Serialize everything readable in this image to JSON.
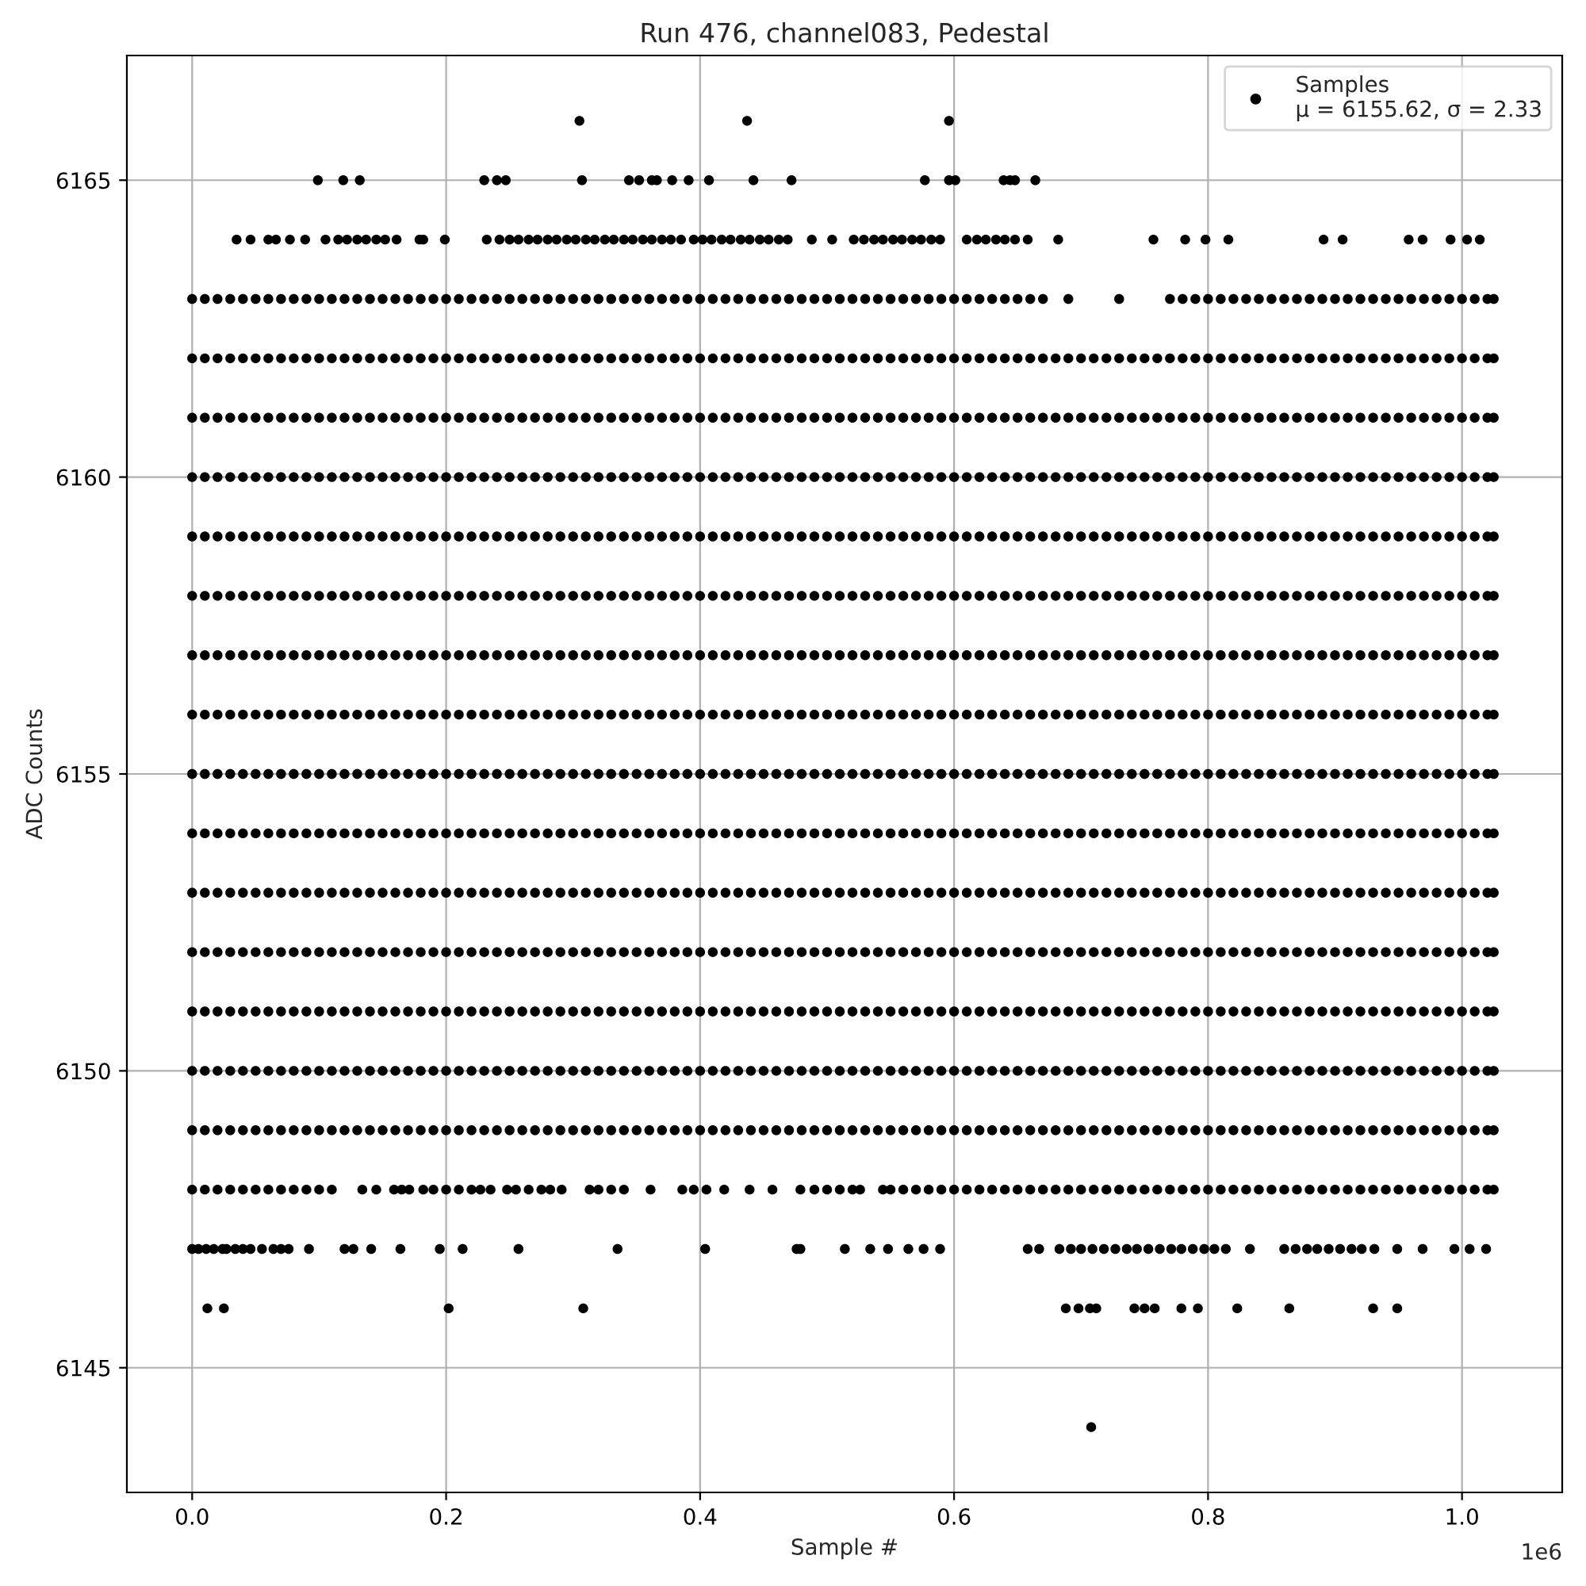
{
  "chart_data": {
    "type": "scatter",
    "title": "Run 476, channel083, Pedestal",
    "xlabel": "Sample #",
    "ylabel": "ADC Counts",
    "annotations": [
      "1e6"
    ],
    "xlim": [
      -0.0514,
      1.0789
    ],
    "ylim": [
      6142.9,
      6167.1
    ],
    "xticks": [
      {
        "value": 0,
        "label": "0.0"
      },
      0.2,
      0.4,
      0.6,
      0.8,
      {
        "value": 1,
        "label": "1.0"
      }
    ],
    "yticks": [
      6145,
      6150,
      6155,
      6160,
      6165
    ],
    "grid": true,
    "legend": "top right",
    "marker": "circle",
    "x": [
      0,
      0.01,
      0.02,
      0.03,
      0.04,
      0.05,
      0.06,
      0.07,
      0.08,
      0.09,
      0.1,
      0.11,
      0.12,
      0.13,
      0.14,
      0.15,
      0.16,
      0.17,
      0.18,
      0.19,
      0.2,
      0.21,
      0.22,
      0.23,
      0.24,
      0.25,
      0.26,
      0.27,
      0.28,
      0.29,
      0.3,
      0.31,
      0.32,
      0.33,
      0.34,
      0.35,
      0.36,
      0.37,
      0.38,
      0.39,
      0.4,
      0.41,
      0.42,
      0.43,
      0.44,
      0.45,
      0.46,
      0.47,
      0.48,
      0.49,
      0.5,
      0.51,
      0.52,
      0.53,
      0.54,
      0.55,
      0.56,
      0.57,
      0.58,
      0.59,
      0.6,
      0.61,
      0.62,
      0.63,
      0.64,
      0.65,
      0.66,
      0.67,
      0.68,
      0.69,
      0.7,
      0.71,
      0.72,
      0.73,
      0.74,
      0.75,
      0.76,
      0.77,
      0.78,
      0.79,
      0.8,
      0.81,
      0.82,
      0.83,
      0.84,
      0.85,
      0.86,
      0.87,
      0.88,
      0.89,
      0.9,
      0.91,
      0.92,
      0.93,
      0.94,
      0.95,
      0.96,
      0.97,
      0.98,
      0.99,
      1,
      1.01,
      1.02,
      1.025
    ],
    "series": [
      {
        "name": "Samples\nμ = 6155.62, σ = 2.33",
        "color": "#000000",
        "values": [
          6160,
          6160,
          6160,
          6160,
          6160,
          6160,
          6160,
          6160,
          6160,
          6160,
          6160,
          6160,
          6160,
          6160,
          6160,
          6160,
          6160,
          6160,
          6160,
          6160,
          6160,
          6160,
          6160,
          6160,
          6160,
          6160,
          6160,
          6160,
          6160,
          6160,
          6160,
          6160,
          6160,
          6160,
          6160,
          6160,
          6160,
          6160,
          6160,
          6160,
          6160,
          6160,
          6160,
          6160,
          6160,
          6160,
          6160,
          6160,
          6160,
          6160,
          6160,
          6160,
          6160,
          6160,
          6160,
          6160,
          6160,
          6160,
          6160,
          6160,
          6160,
          6160,
          6160,
          6160,
          6160,
          6160,
          6160,
          6160,
          6160,
          6160,
          6160,
          6160,
          6160,
          6160,
          6160,
          6160,
          6160,
          6160,
          6160,
          6160,
          6160,
          6160,
          6160,
          6160,
          6160,
          6160,
          6160,
          6160,
          6160,
          6160,
          6160,
          6160,
          6160,
          6160,
          6160,
          6160,
          6160,
          6160,
          6160,
          6160,
          6160,
          6160,
          6160,
          6160
        ]
      },
      {
        "color": "#000000",
        "values": [
          6163,
          6163,
          6163,
          6163,
          6163,
          6163,
          6163,
          6163,
          6163,
          6163,
          6163,
          6163,
          6163,
          6163,
          6163,
          6163,
          6163,
          6163,
          6163,
          6163,
          6163,
          6163,
          6163,
          6163,
          6163,
          6163,
          6163,
          6163,
          6163,
          6163,
          6163,
          6163,
          6163,
          6163,
          6163,
          6163,
          6163,
          6163,
          6163,
          6163,
          6163,
          6163,
          6163,
          6163,
          6163,
          6163,
          6163,
          6163,
          6163,
          6163,
          6163,
          6163,
          6163,
          6163,
          6163,
          6163,
          6163,
          6163,
          6163,
          6163,
          6163,
          6163,
          6163,
          6163,
          6163,
          6163,
          6163,
          6163,
          null,
          6163,
          null,
          null,
          null,
          6163,
          null,
          null,
          null,
          6163,
          6163,
          6163,
          6163,
          6163,
          6163,
          6163,
          6163,
          6163,
          6163,
          6163,
          6163,
          6163,
          6163,
          6163,
          6163,
          6163,
          6163,
          6163,
          6163,
          6163,
          6163,
          6163,
          6163,
          6163,
          6163,
          6163
        ]
      },
      {
        "color": "#000000",
        "values": [
          6162,
          6162,
          6162,
          6162,
          6162,
          6162,
          6162,
          6162,
          6162,
          6162,
          6162,
          6162,
          6162,
          6162,
          6162,
          6162,
          6162,
          6162,
          6162,
          6162,
          6162,
          6162,
          6162,
          6162,
          6162,
          6162,
          6162,
          6162,
          6162,
          6162,
          6162,
          6162,
          6162,
          6162,
          6162,
          6162,
          6162,
          6162,
          6162,
          6162,
          6162,
          6162,
          6162,
          6162,
          6162,
          6162,
          6162,
          6162,
          6162,
          6162,
          6162,
          6162,
          6162,
          6162,
          6162,
          6162,
          6162,
          6162,
          6162,
          6162,
          6162,
          6162,
          6162,
          6162,
          6162,
          6162,
          6162,
          6162,
          6162,
          6162,
          6162,
          6162,
          6162,
          6162,
          6162,
          6162,
          6162,
          6162,
          6162,
          6162,
          6162,
          6162,
          6162,
          6162,
          6162,
          6162,
          6162,
          6162,
          6162,
          6162,
          6162,
          6162,
          6162,
          6162,
          6162,
          6162,
          6162,
          6162,
          6162,
          6162,
          6162,
          6162,
          6162,
          6162
        ]
      },
      {
        "color": "#000000",
        "values": [
          6161,
          6161,
          6161,
          6161,
          6161,
          6161,
          6161,
          6161,
          6161,
          6161,
          6161,
          6161,
          6161,
          6161,
          6161,
          6161,
          6161,
          6161,
          6161,
          6161,
          6161,
          6161,
          6161,
          6161,
          6161,
          6161,
          6161,
          6161,
          6161,
          6161,
          6161,
          6161,
          6161,
          6161,
          6161,
          6161,
          6161,
          6161,
          6161,
          6161,
          6161,
          6161,
          6161,
          6161,
          6161,
          6161,
          6161,
          6161,
          6161,
          6161,
          6161,
          6161,
          6161,
          6161,
          6161,
          6161,
          6161,
          6161,
          6161,
          6161,
          6161,
          6161,
          6161,
          6161,
          6161,
          6161,
          6161,
          6161,
          6161,
          6161,
          6161,
          6161,
          6161,
          6161,
          6161,
          6161,
          6161,
          6161,
          6161,
          6161,
          6161,
          6161,
          6161,
          6161,
          6161,
          6161,
          6161,
          6161,
          6161,
          6161,
          6161,
          6161,
          6161,
          6161,
          6161,
          6161,
          6161,
          6161,
          6161,
          6161,
          6161,
          6161,
          6161,
          6161
        ]
      },
      {
        "color": "#000000",
        "values": [
          6159,
          6159,
          6159,
          6159,
          6159,
          6159,
          6159,
          6159,
          6159,
          6159,
          6159,
          6159,
          6159,
          6159,
          6159,
          6159,
          6159,
          6159,
          6159,
          6159,
          6159,
          6159,
          6159,
          6159,
          6159,
          6159,
          6159,
          6159,
          6159,
          6159,
          6159,
          6159,
          6159,
          6159,
          6159,
          6159,
          6159,
          6159,
          6159,
          6159,
          6159,
          6159,
          6159,
          6159,
          6159,
          6159,
          6159,
          6159,
          6159,
          6159,
          6159,
          6159,
          6159,
          6159,
          6159,
          6159,
          6159,
          6159,
          6159,
          6159,
          6159,
          6159,
          6159,
          6159,
          6159,
          6159,
          6159,
          6159,
          6159,
          6159,
          6159,
          6159,
          6159,
          6159,
          6159,
          6159,
          6159,
          6159,
          6159,
          6159,
          6159,
          6159,
          6159,
          6159,
          6159,
          6159,
          6159,
          6159,
          6159,
          6159,
          6159,
          6159,
          6159,
          6159,
          6159,
          6159,
          6159,
          6159,
          6159,
          6159,
          6159,
          6159,
          6159,
          6159
        ]
      },
      {
        "color": "#000000",
        "values": [
          6158,
          6158,
          6158,
          6158,
          6158,
          6158,
          6158,
          6158,
          6158,
          6158,
          6158,
          6158,
          6158,
          6158,
          6158,
          6158,
          6158,
          6158,
          6158,
          6158,
          6158,
          6158,
          6158,
          6158,
          6158,
          6158,
          6158,
          6158,
          6158,
          6158,
          6158,
          6158,
          6158,
          6158,
          6158,
          6158,
          6158,
          6158,
          6158,
          6158,
          6158,
          6158,
          6158,
          6158,
          6158,
          6158,
          6158,
          6158,
          6158,
          6158,
          6158,
          6158,
          6158,
          6158,
          6158,
          6158,
          6158,
          6158,
          6158,
          6158,
          6158,
          6158,
          6158,
          6158,
          6158,
          6158,
          6158,
          6158,
          6158,
          6158,
          6158,
          6158,
          6158,
          6158,
          6158,
          6158,
          6158,
          6158,
          6158,
          6158,
          6158,
          6158,
          6158,
          6158,
          6158,
          6158,
          6158,
          6158,
          6158,
          6158,
          6158,
          6158,
          6158,
          6158,
          6158,
          6158,
          6158,
          6158,
          6158,
          6158,
          6158,
          6158,
          6158,
          6158
        ]
      },
      {
        "color": "#000000",
        "values": [
          6157,
          6157,
          6157,
          6157,
          6157,
          6157,
          6157,
          6157,
          6157,
          6157,
          6157,
          6157,
          6157,
          6157,
          6157,
          6157,
          6157,
          6157,
          6157,
          6157,
          6157,
          6157,
          6157,
          6157,
          6157,
          6157,
          6157,
          6157,
          6157,
          6157,
          6157,
          6157,
          6157,
          6157,
          6157,
          6157,
          6157,
          6157,
          6157,
          6157,
          6157,
          6157,
          6157,
          6157,
          6157,
          6157,
          6157,
          6157,
          6157,
          6157,
          6157,
          6157,
          6157,
          6157,
          6157,
          6157,
          6157,
          6157,
          6157,
          6157,
          6157,
          6157,
          6157,
          6157,
          6157,
          6157,
          6157,
          6157,
          6157,
          6157,
          6157,
          6157,
          6157,
          6157,
          6157,
          6157,
          6157,
          6157,
          6157,
          6157,
          6157,
          6157,
          6157,
          6157,
          6157,
          6157,
          6157,
          6157,
          6157,
          6157,
          6157,
          6157,
          6157,
          6157,
          6157,
          6157,
          6157,
          6157,
          6157,
          6157,
          6157,
          6157,
          6157,
          6157
        ]
      },
      {
        "color": "#000000",
        "values": [
          6156,
          6156,
          6156,
          6156,
          6156,
          6156,
          6156,
          6156,
          6156,
          6156,
          6156,
          6156,
          6156,
          6156,
          6156,
          6156,
          6156,
          6156,
          6156,
          6156,
          6156,
          6156,
          6156,
          6156,
          6156,
          6156,
          6156,
          6156,
          6156,
          6156,
          6156,
          6156,
          6156,
          6156,
          6156,
          6156,
          6156,
          6156,
          6156,
          6156,
          6156,
          6156,
          6156,
          6156,
          6156,
          6156,
          6156,
          6156,
          6156,
          6156,
          6156,
          6156,
          6156,
          6156,
          6156,
          6156,
          6156,
          6156,
          6156,
          6156,
          6156,
          6156,
          6156,
          6156,
          6156,
          6156,
          6156,
          6156,
          6156,
          6156,
          6156,
          6156,
          6156,
          6156,
          6156,
          6156,
          6156,
          6156,
          6156,
          6156,
          6156,
          6156,
          6156,
          6156,
          6156,
          6156,
          6156,
          6156,
          6156,
          6156,
          6156,
          6156,
          6156,
          6156,
          6156,
          6156,
          6156,
          6156,
          6156,
          6156,
          6156,
          6156,
          6156,
          6156
        ]
      },
      {
        "color": "#000000",
        "values": [
          6155,
          6155,
          6155,
          6155,
          6155,
          6155,
          6155,
          6155,
          6155,
          6155,
          6155,
          6155,
          6155,
          6155,
          6155,
          6155,
          6155,
          6155,
          6155,
          6155,
          6155,
          6155,
          6155,
          6155,
          6155,
          6155,
          6155,
          6155,
          6155,
          6155,
          6155,
          6155,
          6155,
          6155,
          6155,
          6155,
          6155,
          6155,
          6155,
          6155,
          6155,
          6155,
          6155,
          6155,
          6155,
          6155,
          6155,
          6155,
          6155,
          6155,
          6155,
          6155,
          6155,
          6155,
          6155,
          6155,
          6155,
          6155,
          6155,
          6155,
          6155,
          6155,
          6155,
          6155,
          6155,
          6155,
          6155,
          6155,
          6155,
          6155,
          6155,
          6155,
          6155,
          6155,
          6155,
          6155,
          6155,
          6155,
          6155,
          6155,
          6155,
          6155,
          6155,
          6155,
          6155,
          6155,
          6155,
          6155,
          6155,
          6155,
          6155,
          6155,
          6155,
          6155,
          6155,
          6155,
          6155,
          6155,
          6155,
          6155,
          6155,
          6155,
          6155,
          6155
        ]
      },
      {
        "color": "#000000",
        "values": [
          6154,
          6154,
          6154,
          6154,
          6154,
          6154,
          6154,
          6154,
          6154,
          6154,
          6154,
          6154,
          6154,
          6154,
          6154,
          6154,
          6154,
          6154,
          6154,
          6154,
          6154,
          6154,
          6154,
          6154,
          6154,
          6154,
          6154,
          6154,
          6154,
          6154,
          6154,
          6154,
          6154,
          6154,
          6154,
          6154,
          6154,
          6154,
          6154,
          6154,
          6154,
          6154,
          6154,
          6154,
          6154,
          6154,
          6154,
          6154,
          6154,
          6154,
          6154,
          6154,
          6154,
          6154,
          6154,
          6154,
          6154,
          6154,
          6154,
          6154,
          6154,
          6154,
          6154,
          6154,
          6154,
          6154,
          6154,
          6154,
          6154,
          6154,
          6154,
          6154,
          6154,
          6154,
          6154,
          6154,
          6154,
          6154,
          6154,
          6154,
          6154,
          6154,
          6154,
          6154,
          6154,
          6154,
          6154,
          6154,
          6154,
          6154,
          6154,
          6154,
          6154,
          6154,
          6154,
          6154,
          6154,
          6154,
          6154,
          6154,
          6154,
          6154,
          6154,
          6154
        ]
      },
      {
        "color": "#000000",
        "values": [
          6153,
          6153,
          6153,
          6153,
          6153,
          6153,
          6153,
          6153,
          6153,
          6153,
          6153,
          6153,
          6153,
          6153,
          6153,
          6153,
          6153,
          6153,
          6153,
          6153,
          6153,
          6153,
          6153,
          6153,
          6153,
          6153,
          6153,
          6153,
          6153,
          6153,
          6153,
          6153,
          6153,
          6153,
          6153,
          6153,
          6153,
          6153,
          6153,
          6153,
          6153,
          6153,
          6153,
          6153,
          6153,
          6153,
          6153,
          6153,
          6153,
          6153,
          6153,
          6153,
          6153,
          6153,
          6153,
          6153,
          6153,
          6153,
          6153,
          6153,
          6153,
          6153,
          6153,
          6153,
          6153,
          6153,
          6153,
          6153,
          6153,
          6153,
          6153,
          6153,
          6153,
          6153,
          6153,
          6153,
          6153,
          6153,
          6153,
          6153,
          6153,
          6153,
          6153,
          6153,
          6153,
          6153,
          6153,
          6153,
          6153,
          6153,
          6153,
          6153,
          6153,
          6153,
          6153,
          6153,
          6153,
          6153,
          6153,
          6153,
          6153,
          6153,
          6153,
          6153
        ]
      },
      {
        "color": "#000000",
        "values": [
          6152,
          6152,
          6152,
          6152,
          6152,
          6152,
          6152,
          6152,
          6152,
          6152,
          6152,
          6152,
          6152,
          6152,
          6152,
          6152,
          6152,
          6152,
          6152,
          6152,
          6152,
          6152,
          6152,
          6152,
          6152,
          6152,
          6152,
          6152,
          6152,
          6152,
          6152,
          6152,
          6152,
          6152,
          6152,
          6152,
          6152,
          6152,
          6152,
          6152,
          6152,
          6152,
          6152,
          6152,
          6152,
          6152,
          6152,
          6152,
          6152,
          6152,
          6152,
          6152,
          6152,
          6152,
          6152,
          6152,
          6152,
          6152,
          6152,
          6152,
          6152,
          6152,
          6152,
          6152,
          6152,
          6152,
          6152,
          6152,
          6152,
          6152,
          6152,
          6152,
          6152,
          6152,
          6152,
          6152,
          6152,
          6152,
          6152,
          6152,
          6152,
          6152,
          6152,
          6152,
          6152,
          6152,
          6152,
          6152,
          6152,
          6152,
          6152,
          6152,
          6152,
          6152,
          6152,
          6152,
          6152,
          6152,
          6152,
          6152,
          6152,
          6152,
          6152,
          6152
        ]
      },
      {
        "color": "#000000",
        "values": [
          6151,
          6151,
          6151,
          6151,
          6151,
          6151,
          6151,
          6151,
          6151,
          6151,
          6151,
          6151,
          6151,
          6151,
          6151,
          6151,
          6151,
          6151,
          6151,
          6151,
          6151,
          6151,
          6151,
          6151,
          6151,
          6151,
          6151,
          6151,
          6151,
          6151,
          6151,
          6151,
          6151,
          6151,
          6151,
          6151,
          6151,
          6151,
          6151,
          6151,
          6151,
          6151,
          6151,
          6151,
          6151,
          6151,
          6151,
          6151,
          6151,
          6151,
          6151,
          6151,
          6151,
          6151,
          6151,
          6151,
          6151,
          6151,
          6151,
          6151,
          6151,
          6151,
          6151,
          6151,
          6151,
          6151,
          6151,
          6151,
          6151,
          6151,
          6151,
          6151,
          6151,
          6151,
          6151,
          6151,
          6151,
          6151,
          6151,
          6151,
          6151,
          6151,
          6151,
          6151,
          6151,
          6151,
          6151,
          6151,
          6151,
          6151,
          6151,
          6151,
          6151,
          6151,
          6151,
          6151,
          6151,
          6151,
          6151,
          6151,
          6151,
          6151,
          6151,
          6151
        ]
      },
      {
        "color": "#000000",
        "values": [
          6150,
          6150,
          6150,
          6150,
          6150,
          6150,
          6150,
          6150,
          6150,
          6150,
          6150,
          6150,
          6150,
          6150,
          6150,
          6150,
          6150,
          6150,
          6150,
          6150,
          6150,
          6150,
          6150,
          6150,
          6150,
          6150,
          6150,
          6150,
          6150,
          6150,
          6150,
          6150,
          6150,
          6150,
          6150,
          6150,
          6150,
          6150,
          6150,
          6150,
          6150,
          6150,
          6150,
          6150,
          6150,
          6150,
          6150,
          6150,
          6150,
          6150,
          6150,
          6150,
          6150,
          6150,
          6150,
          6150,
          6150,
          6150,
          6150,
          6150,
          6150,
          6150,
          6150,
          6150,
          6150,
          6150,
          6150,
          6150,
          6150,
          6150,
          6150,
          6150,
          6150,
          6150,
          6150,
          6150,
          6150,
          6150,
          6150,
          6150,
          6150,
          6150,
          6150,
          6150,
          6150,
          6150,
          6150,
          6150,
          6150,
          6150,
          6150,
          6150,
          6150,
          6150,
          6150,
          6150,
          6150,
          6150,
          6150,
          6150,
          6150,
          6150,
          6150,
          6150
        ]
      },
      {
        "color": "#000000",
        "values": [
          6149,
          6149,
          6149,
          6149,
          6149,
          6149,
          6149,
          6149,
          6149,
          6149,
          6149,
          6149,
          6149,
          6149,
          6149,
          6149,
          6149,
          6149,
          6149,
          6149,
          6149,
          6149,
          6149,
          6149,
          6149,
          6149,
          6149,
          6149,
          6149,
          6149,
          6149,
          6149,
          6149,
          6149,
          6149,
          6149,
          6149,
          6149,
          6149,
          6149,
          6149,
          6149,
          6149,
          6149,
          6149,
          6149,
          6149,
          6149,
          6149,
          6149,
          6149,
          6149,
          6149,
          6149,
          6149,
          6149,
          6149,
          6149,
          6149,
          6149,
          6149,
          6149,
          6149,
          6149,
          6149,
          6149,
          6149,
          6149,
          6149,
          6149,
          6149,
          6149,
          6149,
          6149,
          6149,
          6149,
          6149,
          6149,
          6149,
          6149,
          6149,
          6149,
          6149,
          6149,
          6149,
          6149,
          6149,
          6149,
          6149,
          6149,
          6149,
          6149,
          6149,
          6149,
          6149,
          6149,
          6149,
          6149,
          6149,
          6149,
          6149,
          6149,
          6149,
          6149
        ]
      },
      {
        "color": "#000000",
        "x": [
          0.305,
          0.437,
          0.596
        ],
        "values": [
          6166,
          6166,
          6166
        ]
      },
      {
        "color": "#000000",
        "x": [
          0.099,
          0.119,
          0.132,
          0.23,
          0.24,
          0.247,
          0.307,
          0.344,
          0.352,
          0.362,
          0.366,
          0.378,
          0.391,
          0.407,
          0.442,
          0.472,
          0.577,
          0.596,
          0.601,
          0.639,
          0.644,
          0.648,
          0.664
        ],
        "values": [
          6165,
          6165,
          6165,
          6165,
          6165,
          6165,
          6165,
          6165,
          6165,
          6165,
          6165,
          6165,
          6165,
          6165,
          6165,
          6165,
          6165,
          6165,
          6165,
          6165,
          6165,
          6165,
          6165
        ]
      },
      {
        "color": "#000000",
        "x": [
          0.035,
          0.046,
          0.06,
          0.066,
          0.077,
          0.089,
          0.105,
          0.115,
          0.122,
          0.13,
          0.137,
          0.145,
          0.152,
          0.161,
          0.179,
          0.182,
          0.199,
          0.232,
          0.242,
          0.25,
          0.257,
          0.265,
          0.272,
          0.28,
          0.287,
          0.295,
          0.302,
          0.31,
          0.317,
          0.325,
          0.332,
          0.34,
          0.347,
          0.355,
          0.362,
          0.37,
          0.377,
          0.385,
          0.395,
          0.402,
          0.409,
          0.417,
          0.424,
          0.432,
          0.439,
          0.447,
          0.454,
          0.462,
          0.469,
          0.488,
          0.504,
          0.521,
          0.529,
          0.537,
          0.544,
          0.552,
          0.559,
          0.567,
          0.574,
          0.582,
          0.589,
          0.61,
          0.618,
          0.625,
          0.633,
          0.64,
          0.648,
          0.658,
          0.682,
          0.757,
          0.782,
          0.798,
          0.816,
          0.891,
          0.906,
          0.958,
          0.969,
          0.991,
          1.004,
          1.014
        ],
        "values": [
          6164,
          6164,
          6164,
          6164,
          6164,
          6164,
          6164,
          6164,
          6164,
          6164,
          6164,
          6164,
          6164,
          6164,
          6164,
          6164,
          6164,
          6164,
          6164,
          6164,
          6164,
          6164,
          6164,
          6164,
          6164,
          6164,
          6164,
          6164,
          6164,
          6164,
          6164,
          6164,
          6164,
          6164,
          6164,
          6164,
          6164,
          6164,
          6164,
          6164,
          6164,
          6164,
          6164,
          6164,
          6164,
          6164,
          6164,
          6164,
          6164,
          6164,
          6164,
          6164,
          6164,
          6164,
          6164,
          6164,
          6164,
          6164,
          6164,
          6164,
          6164,
          6164,
          6164,
          6164,
          6164,
          6164,
          6164,
          6164,
          6164,
          6164,
          6164,
          6164,
          6164,
          6164,
          6164,
          6164,
          6164,
          6164,
          6164,
          6164
        ]
      },
      {
        "color": "#000000",
        "x": [
          0,
          0.01,
          0.02,
          0.03,
          0.04,
          0.05,
          0.06,
          0.07,
          0.08,
          0.09,
          0.1,
          0.11,
          0.134,
          0.145,
          0.159,
          0.165,
          0.171,
          0.182,
          0.19,
          0.2,
          0.21,
          0.22,
          0.227,
          0.235,
          0.248,
          0.255,
          0.265,
          0.275,
          0.282,
          0.291,
          0.313,
          0.32,
          0.33,
          0.34,
          0.361,
          0.386,
          0.395,
          0.405,
          0.419,
          0.439,
          0.457,
          0.479,
          0.49,
          0.5,
          0.51,
          0.52,
          0.526,
          0.544,
          0.55,
          0.56,
          0.57,
          0.58,
          0.59,
          0.6,
          0.61,
          0.62,
          0.63,
          0.64,
          0.65,
          0.66,
          0.67,
          0.68,
          0.69,
          0.7,
          0.71,
          0.72,
          0.73,
          0.74,
          0.75,
          0.76,
          0.77,
          0.78,
          0.79,
          0.8,
          0.81,
          0.82,
          0.83,
          0.84,
          0.85,
          0.86,
          0.87,
          0.88,
          0.89,
          0.9,
          0.91,
          0.92,
          0.93,
          0.94,
          0.95,
          0.96,
          0.97,
          0.98,
          0.99,
          1,
          1.01,
          1.02,
          1.025
        ],
        "values": [
          6148,
          6148,
          6148,
          6148,
          6148,
          6148,
          6148,
          6148,
          6148,
          6148,
          6148,
          6148,
          6148,
          6148,
          6148,
          6148,
          6148,
          6148,
          6148,
          6148,
          6148,
          6148,
          6148,
          6148,
          6148,
          6148,
          6148,
          6148,
          6148,
          6148,
          6148,
          6148,
          6148,
          6148,
          6148,
          6148,
          6148,
          6148,
          6148,
          6148,
          6148,
          6148,
          6148,
          6148,
          6148,
          6148,
          6148,
          6148,
          6148,
          6148,
          6148,
          6148,
          6148,
          6148,
          6148,
          6148,
          6148,
          6148,
          6148,
          6148,
          6148,
          6148,
          6148,
          6148,
          6148,
          6148,
          6148,
          6148,
          6148,
          6148,
          6148,
          6148,
          6148,
          6148,
          6148,
          6148,
          6148,
          6148,
          6148,
          6148,
          6148,
          6148,
          6148,
          6148,
          6148,
          6148,
          6148,
          6148,
          6148,
          6148,
          6148,
          6148,
          6148,
          6148,
          6148,
          6148,
          6148
        ]
      },
      {
        "color": "#000000",
        "x": [
          0,
          0.005,
          0.011,
          0.017,
          0.024,
          0.027,
          0.034,
          0.04,
          0.046,
          0.055,
          0.064,
          0.07,
          0.076,
          0.092,
          0.12,
          0.127,
          0.141,
          0.164,
          0.195,
          0.213,
          0.257,
          0.335,
          0.404,
          0.476,
          0.479,
          0.514,
          0.534,
          0.548,
          0.564,
          0.576,
          0.589,
          0.658,
          0.667,
          0.683,
          0.692,
          0.7,
          0.709,
          0.718,
          0.727,
          0.736,
          0.744,
          0.753,
          0.762,
          0.771,
          0.779,
          0.788,
          0.797,
          0.805,
          0.814,
          0.833,
          0.86,
          0.869,
          0.878,
          0.886,
          0.895,
          0.904,
          0.913,
          0.921,
          0.931,
          0.949,
          0.969,
          0.994,
          1.006,
          1.019
        ],
        "values": [
          6147,
          6147,
          6147,
          6147,
          6147,
          6147,
          6147,
          6147,
          6147,
          6147,
          6147,
          6147,
          6147,
          6147,
          6147,
          6147,
          6147,
          6147,
          6147,
          6147,
          6147,
          6147,
          6147,
          6147,
          6147,
          6147,
          6147,
          6147,
          6147,
          6147,
          6147,
          6147,
          6147,
          6147,
          6147,
          6147,
          6147,
          6147,
          6147,
          6147,
          6147,
          6147,
          6147,
          6147,
          6147,
          6147,
          6147,
          6147,
          6147,
          6147,
          6147,
          6147,
          6147,
          6147,
          6147,
          6147,
          6147,
          6147,
          6147,
          6147,
          6147,
          6147,
          6147,
          6147
        ]
      },
      {
        "color": "#000000",
        "x": [
          0.012,
          0.025,
          0.202,
          0.308,
          0.688,
          0.698,
          0.707,
          0.712,
          0.742,
          0.75,
          0.758,
          0.779,
          0.792,
          0.823,
          0.864,
          0.93,
          0.949
        ],
        "values": [
          6146,
          6146,
          6146,
          6146,
          6146,
          6146,
          6146,
          6146,
          6146,
          6146,
          6146,
          6146,
          6146,
          6146,
          6146,
          6146,
          6146
        ]
      },
      {
        "color": "#000000",
        "x": [
          0.708
        ],
        "values": [
          6144
        ]
      }
    ]
  }
}
